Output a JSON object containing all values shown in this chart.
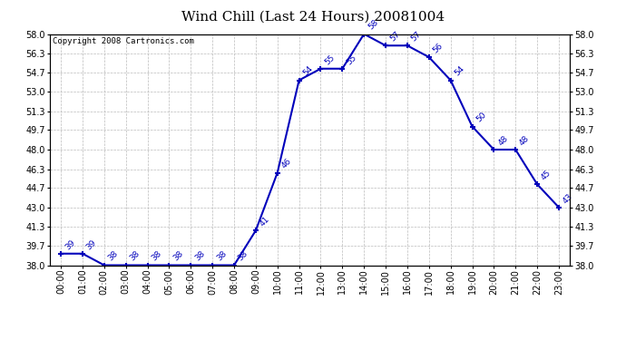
{
  "title": "Wind Chill (Last 24 Hours) 20081004",
  "copyright_text": "Copyright 2008 Cartronics.com",
  "hours": [
    0,
    1,
    2,
    3,
    4,
    5,
    6,
    7,
    8,
    9,
    10,
    11,
    12,
    13,
    14,
    15,
    16,
    17,
    18,
    19,
    20,
    21,
    22,
    23
  ],
  "values": [
    39,
    39,
    38,
    38,
    38,
    38,
    38,
    38,
    38,
    41,
    46,
    54,
    55,
    55,
    58,
    57,
    57,
    56,
    54,
    50,
    48,
    48,
    45,
    43
  ],
  "ylim": [
    38.0,
    58.0
  ],
  "yticks": [
    38.0,
    39.7,
    41.3,
    43.0,
    44.7,
    46.3,
    48.0,
    49.7,
    51.3,
    53.0,
    54.7,
    56.3,
    58.0
  ],
  "xtick_labels": [
    "00:00",
    "01:00",
    "02:00",
    "03:00",
    "04:00",
    "05:00",
    "06:00",
    "07:00",
    "08:00",
    "09:00",
    "10:00",
    "11:00",
    "12:00",
    "13:00",
    "14:00",
    "15:00",
    "16:00",
    "17:00",
    "18:00",
    "19:00",
    "20:00",
    "21:00",
    "22:00",
    "23:00"
  ],
  "line_color": "#0000bb",
  "bg_color": "#ffffff",
  "grid_color": "#bbbbbb",
  "title_fontsize": 11,
  "tick_fontsize": 7,
  "annotation_fontsize": 6.5,
  "copyright_fontsize": 6.5
}
